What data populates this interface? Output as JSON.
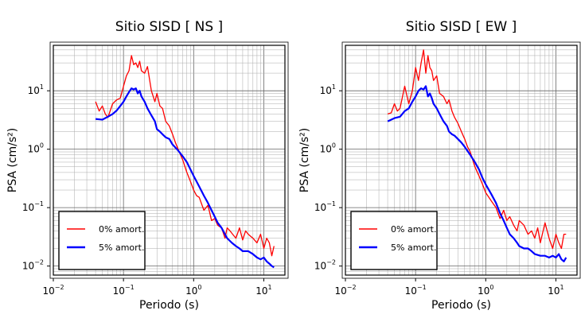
{
  "chart_data": [
    {
      "type": "line",
      "title": "Sitio SISD [ NS ]",
      "xlabel": "Periodo (s)",
      "ylabel": "PSA (cm/s²)",
      "xscale": "log",
      "yscale": "log",
      "xlim": [
        0.01,
        20
      ],
      "ylim": [
        0.007,
        60
      ],
      "x_ticks": [
        0.01,
        0.1,
        1,
        10
      ],
      "y_ticks": [
        0.01,
        0.1,
        1,
        10
      ],
      "grid": true,
      "legend_position": "bottom-left",
      "series": [
        {
          "name": "0% amort.",
          "color": "#ff0000",
          "x": [
            0.04,
            0.045,
            0.05,
            0.055,
            0.06,
            0.07,
            0.08,
            0.09,
            0.1,
            0.11,
            0.12,
            0.13,
            0.14,
            0.15,
            0.16,
            0.17,
            0.18,
            0.2,
            0.22,
            0.25,
            0.28,
            0.3,
            0.33,
            0.36,
            0.4,
            0.45,
            0.5,
            0.55,
            0.6,
            0.7,
            0.8,
            0.9,
            1.0,
            1.1,
            1.2,
            1.4,
            1.6,
            1.8,
            2.0,
            2.2,
            2.5,
            2.8,
            3.0,
            3.3,
            3.6,
            4.0,
            4.5,
            5.0,
            5.5,
            6.0,
            7.0,
            8.0,
            9.0,
            10.0,
            11.0,
            12.0,
            13.0,
            14.0
          ],
          "y": [
            6.5,
            4.5,
            5.5,
            4.0,
            3.5,
            6.0,
            7.0,
            7.5,
            12.0,
            18.0,
            22.0,
            40.0,
            28.0,
            30.0,
            25.0,
            32.0,
            22.0,
            20.0,
            26.0,
            10.0,
            6.5,
            9.0,
            5.5,
            5.0,
            3.0,
            2.5,
            1.8,
            1.3,
            1.0,
            0.65,
            0.4,
            0.28,
            0.2,
            0.16,
            0.15,
            0.09,
            0.11,
            0.06,
            0.065,
            0.05,
            0.045,
            0.03,
            0.045,
            0.04,
            0.035,
            0.03,
            0.045,
            0.028,
            0.04,
            0.035,
            0.03,
            0.025,
            0.035,
            0.02,
            0.03,
            0.025,
            0.015,
            0.022
          ]
        },
        {
          "name": "5% amort.",
          "color": "#0000ff",
          "x": [
            0.04,
            0.05,
            0.06,
            0.07,
            0.08,
            0.09,
            0.1,
            0.11,
            0.12,
            0.13,
            0.14,
            0.15,
            0.16,
            0.17,
            0.18,
            0.2,
            0.22,
            0.25,
            0.28,
            0.3,
            0.33,
            0.36,
            0.4,
            0.45,
            0.5,
            0.6,
            0.7,
            0.8,
            0.9,
            1.0,
            1.2,
            1.4,
            1.6,
            1.8,
            2.0,
            2.2,
            2.5,
            2.8,
            3.0,
            3.5,
            4.0,
            4.5,
            5.0,
            6.0,
            7.0,
            8.0,
            9.0,
            10.0,
            11.0,
            12.0,
            13.0,
            14.0
          ],
          "y": [
            3.3,
            3.2,
            3.6,
            4.0,
            4.6,
            5.5,
            6.5,
            8.0,
            9.5,
            11.0,
            10.5,
            11.0,
            9.0,
            10.0,
            8.0,
            6.5,
            5.0,
            3.8,
            3.0,
            2.2,
            2.0,
            1.8,
            1.6,
            1.5,
            1.2,
            0.95,
            0.75,
            0.6,
            0.45,
            0.35,
            0.23,
            0.16,
            0.12,
            0.09,
            0.07,
            0.055,
            0.045,
            0.035,
            0.03,
            0.025,
            0.022,
            0.02,
            0.018,
            0.018,
            0.016,
            0.014,
            0.013,
            0.014,
            0.012,
            0.011,
            0.01,
            0.0095
          ]
        }
      ]
    },
    {
      "type": "line",
      "title": "Sitio SISD [ EW ]",
      "xlabel": "Periodo (s)",
      "ylabel": "PSA (cm/s²)",
      "xscale": "log",
      "yscale": "log",
      "xlim": [
        0.01,
        20
      ],
      "ylim": [
        0.007,
        60
      ],
      "x_ticks": [
        0.01,
        0.1,
        1,
        10
      ],
      "y_ticks": [
        0.01,
        0.1,
        1,
        10
      ],
      "grid": true,
      "legend_position": "bottom-left",
      "series": [
        {
          "name": "0% amort.",
          "color": "#ff0000",
          "x": [
            0.04,
            0.045,
            0.05,
            0.055,
            0.06,
            0.07,
            0.08,
            0.09,
            0.1,
            0.11,
            0.12,
            0.13,
            0.14,
            0.15,
            0.16,
            0.17,
            0.18,
            0.2,
            0.22,
            0.25,
            0.28,
            0.3,
            0.33,
            0.36,
            0.4,
            0.45,
            0.5,
            0.55,
            0.6,
            0.7,
            0.8,
            0.9,
            1.0,
            1.2,
            1.4,
            1.6,
            1.8,
            2.0,
            2.2,
            2.5,
            2.8,
            3.0,
            3.5,
            4.0,
            4.5,
            5.0,
            5.5,
            6.0,
            7.0,
            8.0,
            9.0,
            10.0,
            11.0,
            12.0,
            13.0,
            14.0
          ],
          "y": [
            4.0,
            4.2,
            6.0,
            4.5,
            5.0,
            12.0,
            6.0,
            10.0,
            25.0,
            15.0,
            30.0,
            50.0,
            20.0,
            40.0,
            25.0,
            22.0,
            15.0,
            18.0,
            9.0,
            8.0,
            6.0,
            7.0,
            4.5,
            3.5,
            2.8,
            2.0,
            1.5,
            1.1,
            0.9,
            0.5,
            0.35,
            0.25,
            0.18,
            0.13,
            0.1,
            0.065,
            0.09,
            0.06,
            0.07,
            0.05,
            0.04,
            0.06,
            0.05,
            0.035,
            0.04,
            0.03,
            0.045,
            0.025,
            0.055,
            0.03,
            0.02,
            0.035,
            0.025,
            0.02,
            0.035,
            0.035
          ]
        },
        {
          "name": "5% amort.",
          "color": "#0000ff",
          "x": [
            0.04,
            0.05,
            0.06,
            0.07,
            0.08,
            0.09,
            0.1,
            0.11,
            0.12,
            0.13,
            0.14,
            0.15,
            0.16,
            0.17,
            0.18,
            0.2,
            0.22,
            0.25,
            0.28,
            0.3,
            0.33,
            0.36,
            0.4,
            0.45,
            0.5,
            0.6,
            0.7,
            0.8,
            0.9,
            1.0,
            1.2,
            1.4,
            1.6,
            1.8,
            2.0,
            2.2,
            2.5,
            2.8,
            3.0,
            3.5,
            4.0,
            4.5,
            5.0,
            6.0,
            7.0,
            8.0,
            9.0,
            10.0,
            11.0,
            12.0,
            13.0,
            14.0
          ],
          "y": [
            3.0,
            3.4,
            3.6,
            4.5,
            5.0,
            6.5,
            8.0,
            10.0,
            11.0,
            10.5,
            12.0,
            8.0,
            9.0,
            7.5,
            6.0,
            5.0,
            4.0,
            3.0,
            2.5,
            2.0,
            1.8,
            1.7,
            1.5,
            1.3,
            1.1,
            0.8,
            0.6,
            0.45,
            0.32,
            0.25,
            0.17,
            0.12,
            0.08,
            0.06,
            0.045,
            0.035,
            0.03,
            0.025,
            0.022,
            0.02,
            0.02,
            0.018,
            0.016,
            0.015,
            0.015,
            0.014,
            0.015,
            0.014,
            0.016,
            0.013,
            0.012,
            0.014
          ]
        }
      ]
    }
  ]
}
